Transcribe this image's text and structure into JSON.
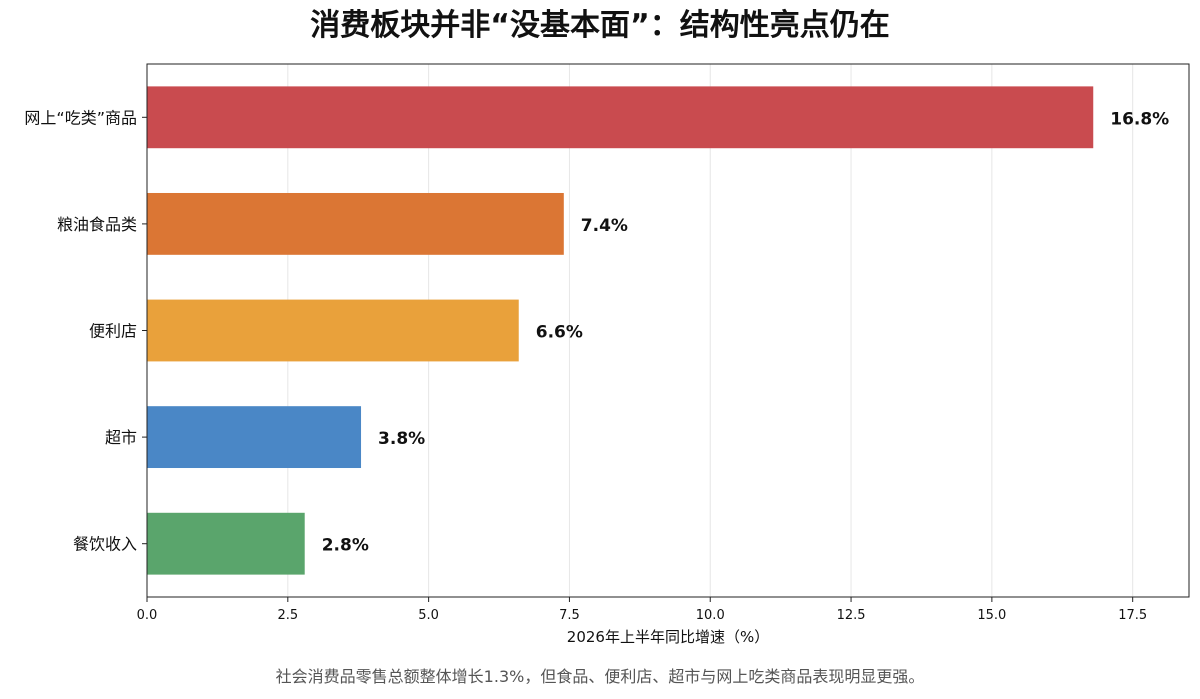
{
  "chart_data": {
    "type": "bar",
    "orientation": "horizontal",
    "title": "消费板块并非“没基本面”：结构性亮点仍在",
    "xlabel": "2026年上半年同比增速（%）",
    "ylabel": "",
    "categories": [
      "网上“吃类”商品",
      "粮油食品类",
      "便利店",
      "超市",
      "餐饮收入"
    ],
    "values": [
      16.8,
      7.4,
      6.6,
      3.8,
      2.8
    ],
    "value_labels": [
      "16.8%",
      "7.4%",
      "6.6%",
      "3.8%",
      "2.8%"
    ],
    "colors": [
      "#c94b4f",
      "#db7634",
      "#e9a13b",
      "#4a87c6",
      "#5aa56c"
    ],
    "xlim": [
      0,
      18.5
    ],
    "xticks": [
      0.0,
      2.5,
      5.0,
      7.5,
      10.0,
      12.5,
      15.0,
      17.5
    ],
    "xtick_labels": [
      "0.0",
      "2.5",
      "5.0",
      "7.5",
      "10.0",
      "12.5",
      "15.0",
      "17.5"
    ],
    "grid": "vertical",
    "legend": "none",
    "footnote": "社会消费品零售总额整体增长1.3%，但食品、便利店、超市与网上吃类商品表现明显更强。"
  }
}
